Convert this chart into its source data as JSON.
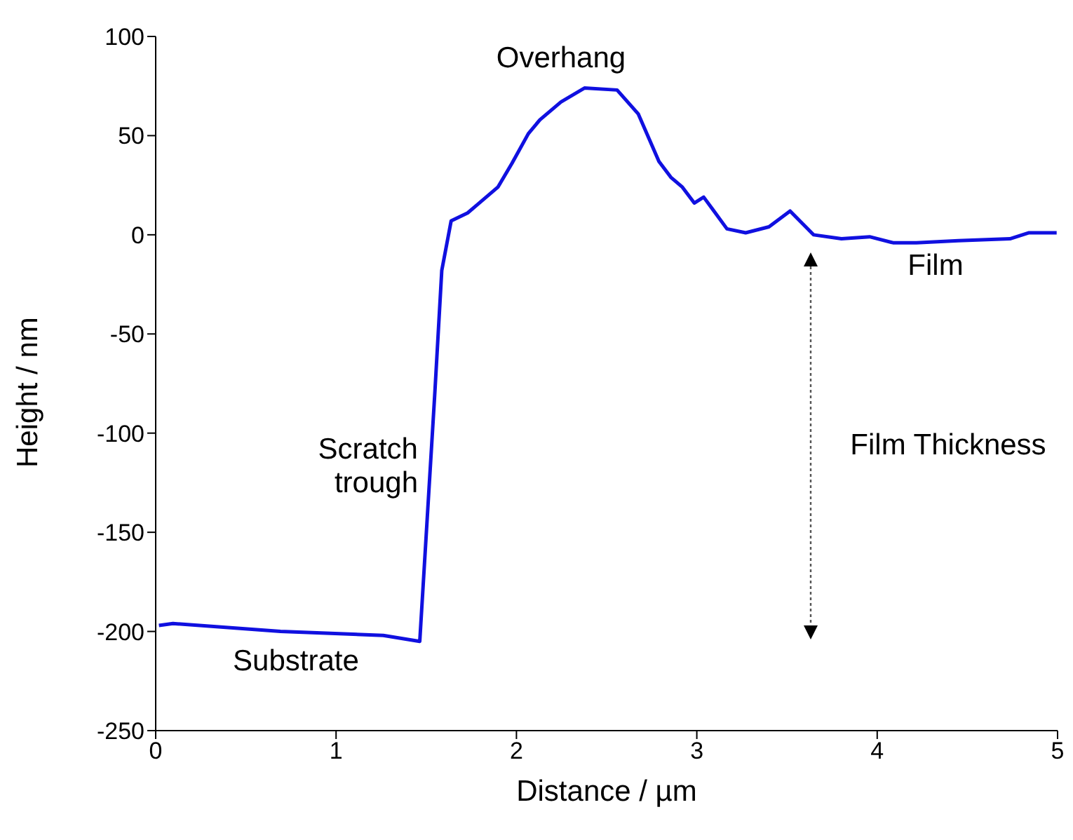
{
  "chart_data": {
    "type": "line",
    "xlabel": "Distance / µm",
    "ylabel": "Height  / nm",
    "series": [
      {
        "color": "#1010e0",
        "x": [
          0.018,
          0.096,
          0.692,
          1.262,
          1.464,
          1.548,
          1.586,
          1.638,
          1.729,
          1.781,
          1.897,
          1.975,
          2.066,
          2.13,
          2.247,
          2.377,
          2.558,
          2.675,
          2.79,
          2.856,
          2.92,
          2.986,
          3.038,
          3.167,
          3.271,
          3.4,
          3.517,
          3.647,
          3.802,
          3.958,
          4.088,
          4.217,
          4.45,
          4.736,
          4.839,
          4.995
        ],
        "values": [
          -197,
          -196,
          -200,
          -202,
          -205,
          -79,
          -18,
          7,
          11,
          15,
          24,
          36,
          51,
          58,
          67,
          74,
          73,
          61,
          37,
          29,
          24,
          16,
          19,
          3,
          1,
          4,
          12,
          0,
          -2,
          -1,
          -4,
          -4,
          -3,
          -2,
          1,
          1
        ]
      }
    ],
    "xlim": [
      0,
      5
    ],
    "xticks": [
      0,
      1,
      2,
      3,
      4,
      5
    ],
    "ylim": [
      -250,
      100
    ],
    "yticks": [
      -250,
      -200,
      -150,
      -100,
      -50,
      0,
      50,
      100
    ],
    "grid": false,
    "legend": false,
    "marker": "none",
    "line_style": "solid",
    "annotations": [
      "Overhang",
      "Scratch trough",
      "Substrate",
      "Film",
      "Film Thickness"
    ]
  }
}
